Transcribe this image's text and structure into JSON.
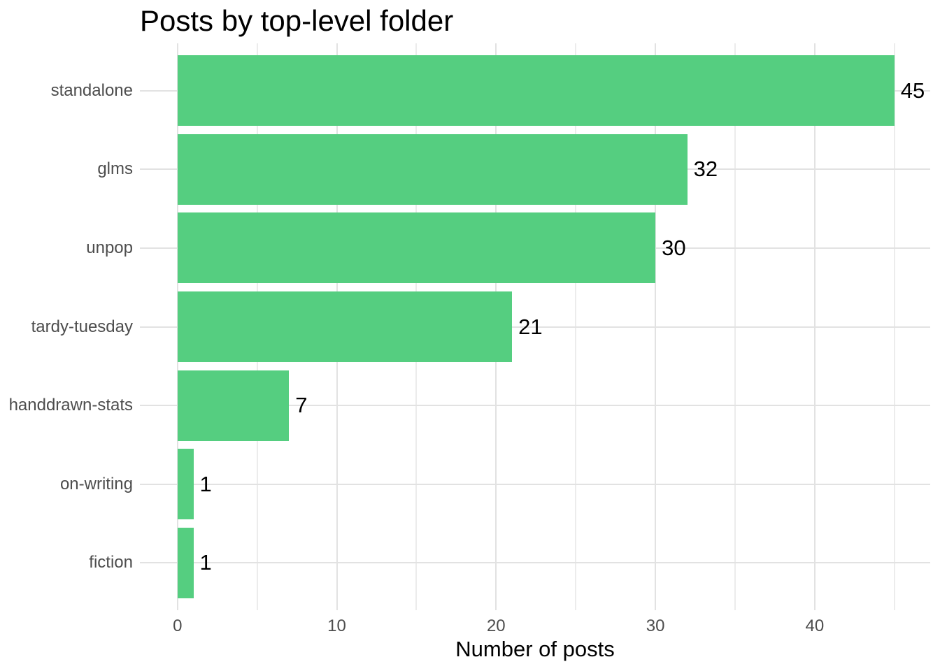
{
  "chart_data": {
    "type": "bar",
    "orientation": "horizontal",
    "title": "Posts by top-level folder",
    "xlabel": "Number of posts",
    "ylabel": "",
    "categories": [
      "standalone",
      "glms",
      "unpop",
      "tardy-tuesday",
      "handdrawn-stats",
      "on-writing",
      "fiction"
    ],
    "values": [
      45,
      32,
      30,
      21,
      7,
      1,
      1
    ],
    "bar_labels": [
      "45",
      "32",
      "30",
      "21",
      "7",
      "1",
      "1"
    ],
    "xticks": [
      0,
      10,
      20,
      30,
      40
    ],
    "xticks_minor": [
      5,
      15,
      25,
      35,
      45
    ],
    "xlim": [
      -2.36,
      47.25
    ],
    "bar_width_fraction": 0.9,
    "grid": "major-and-minor-vertical, major-horizontal",
    "legend": "none",
    "colors": {
      "bar": "#55CE80",
      "grid_major": "#e2e2e2",
      "grid_minor": "#ececec",
      "axis_text": "#4d4d4d",
      "title_text": "#000000",
      "value_label_text": "#000000",
      "background": "#ffffff"
    }
  }
}
